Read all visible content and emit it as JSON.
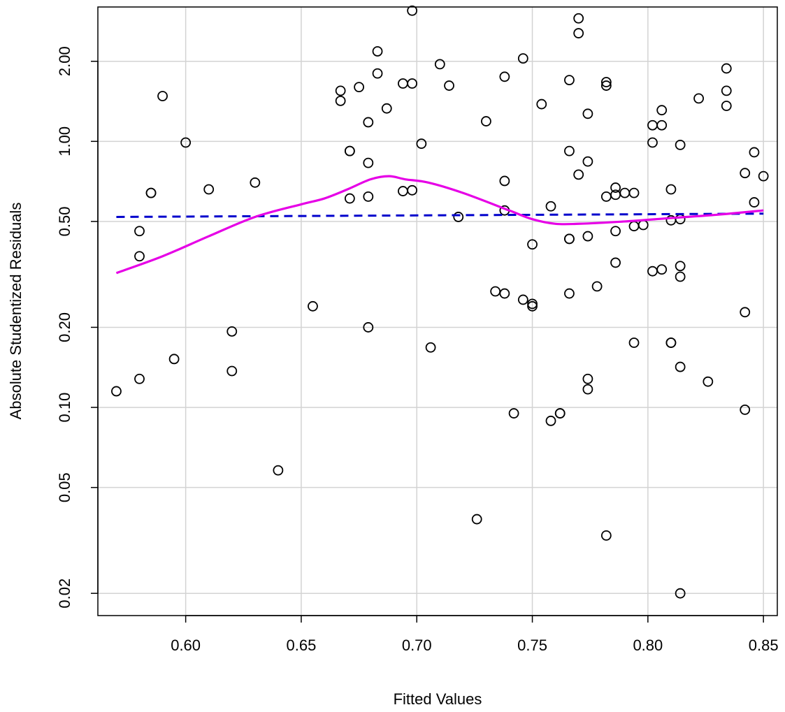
{
  "chart_data": {
    "type": "scatter",
    "title": "",
    "xlabel": "Fitted Values",
    "ylabel": "Absolute Studentized Residuals",
    "xlim": [
      0.562,
      0.856
    ],
    "ylim": [
      0.0165,
      3.2
    ],
    "y_scale": "log",
    "grid": true,
    "x_ticks": [
      0.6,
      0.65,
      0.7,
      0.75,
      0.8,
      0.85
    ],
    "x_tick_labels": [
      "0.60",
      "0.65",
      "0.70",
      "0.75",
      "0.80",
      "0.85"
    ],
    "y_ticks": [
      0.02,
      0.05,
      0.1,
      0.2,
      0.5,
      1.0,
      2.0
    ],
    "y_tick_labels": [
      "0.02",
      "0.05",
      "0.10",
      "0.20",
      "0.50",
      "1.00",
      "2.00"
    ],
    "points": {
      "x": [
        0.57,
        0.58,
        0.58,
        0.58,
        0.585,
        0.585,
        0.59,
        0.595,
        0.6,
        0.61,
        0.62,
        0.62,
        0.63,
        0.64,
        0.655,
        0.667,
        0.667,
        0.671,
        0.671,
        0.671,
        0.675,
        0.679,
        0.679,
        0.679,
        0.679,
        0.683,
        0.683,
        0.687,
        0.694,
        0.694,
        0.698,
        0.698,
        0.698,
        0.702,
        0.706,
        0.71,
        0.714,
        0.718,
        0.726,
        0.73,
        0.734,
        0.738,
        0.738,
        0.738,
        0.738,
        0.742,
        0.746,
        0.746,
        0.75,
        0.75,
        0.75,
        0.754,
        0.758,
        0.758,
        0.762,
        0.762,
        0.766,
        0.766,
        0.766,
        0.766,
        0.766,
        0.77,
        0.77,
        0.77,
        0.774,
        0.774,
        0.774,
        0.774,
        0.774,
        0.778,
        0.782,
        0.782,
        0.782,
        0.782,
        0.786,
        0.786,
        0.786,
        0.786,
        0.79,
        0.794,
        0.794,
        0.794,
        0.798,
        0.802,
        0.802,
        0.802,
        0.806,
        0.806,
        0.806,
        0.81,
        0.81,
        0.81,
        0.81,
        0.814,
        0.814,
        0.814,
        0.814,
        0.814,
        0.814,
        0.822,
        0.826,
        0.834,
        0.834,
        0.834,
        0.842,
        0.842,
        0.842,
        0.846,
        0.846,
        0.85
      ],
      "y": [
        0.115,
        0.128,
        0.37,
        0.46,
        0.64,
        0.64,
        1.48,
        0.152,
        0.99,
        0.66,
        0.193,
        0.137,
        0.7,
        0.058,
        0.24,
        1.42,
        1.55,
        0.61,
        0.92,
        0.92,
        1.6,
        0.2,
        0.62,
        0.83,
        1.18,
        1.8,
        2.18,
        1.33,
        0.65,
        1.65,
        0.655,
        1.65,
        3.1,
        0.98,
        0.168,
        1.95,
        1.62,
        0.52,
        0.038,
        1.19,
        0.273,
        0.268,
        0.55,
        0.71,
        1.75,
        0.095,
        0.254,
        2.05,
        0.245,
        0.24,
        0.41,
        1.38,
        0.089,
        0.57,
        0.095,
        0.095,
        0.268,
        0.43,
        0.43,
        0.92,
        1.7,
        0.75,
        2.55,
        2.9,
        0.117,
        0.128,
        0.44,
        0.84,
        1.27,
        0.285,
        0.033,
        0.62,
        1.62,
        1.67,
        0.35,
        0.46,
        0.63,
        0.67,
        0.64,
        0.175,
        0.48,
        0.64,
        0.485,
        0.325,
        0.99,
        1.15,
        0.33,
        1.15,
        1.31,
        0.175,
        0.175,
        0.505,
        0.66,
        0.02,
        0.142,
        0.31,
        0.34,
        0.51,
        0.97,
        1.45,
        0.125,
        1.36,
        1.55,
        1.88,
        0.098,
        0.228,
        0.76,
        0.59,
        0.91,
        0.74
      ]
    },
    "reference_line": {
      "color": "#0000cc",
      "style": "dashed",
      "x": [
        0.57,
        0.85
      ],
      "y": [
        0.52,
        0.535
      ]
    },
    "smooth_line": {
      "color": "#e600e6",
      "x": [
        0.57,
        0.59,
        0.61,
        0.63,
        0.65,
        0.66,
        0.67,
        0.68,
        0.688,
        0.695,
        0.705,
        0.72,
        0.74,
        0.75,
        0.76,
        0.77,
        0.79,
        0.81,
        0.83,
        0.85
      ],
      "y": [
        0.32,
        0.37,
        0.44,
        0.52,
        0.58,
        0.61,
        0.66,
        0.72,
        0.74,
        0.72,
        0.7,
        0.64,
        0.55,
        0.51,
        0.49,
        0.49,
        0.5,
        0.515,
        0.53,
        0.55
      ]
    }
  }
}
